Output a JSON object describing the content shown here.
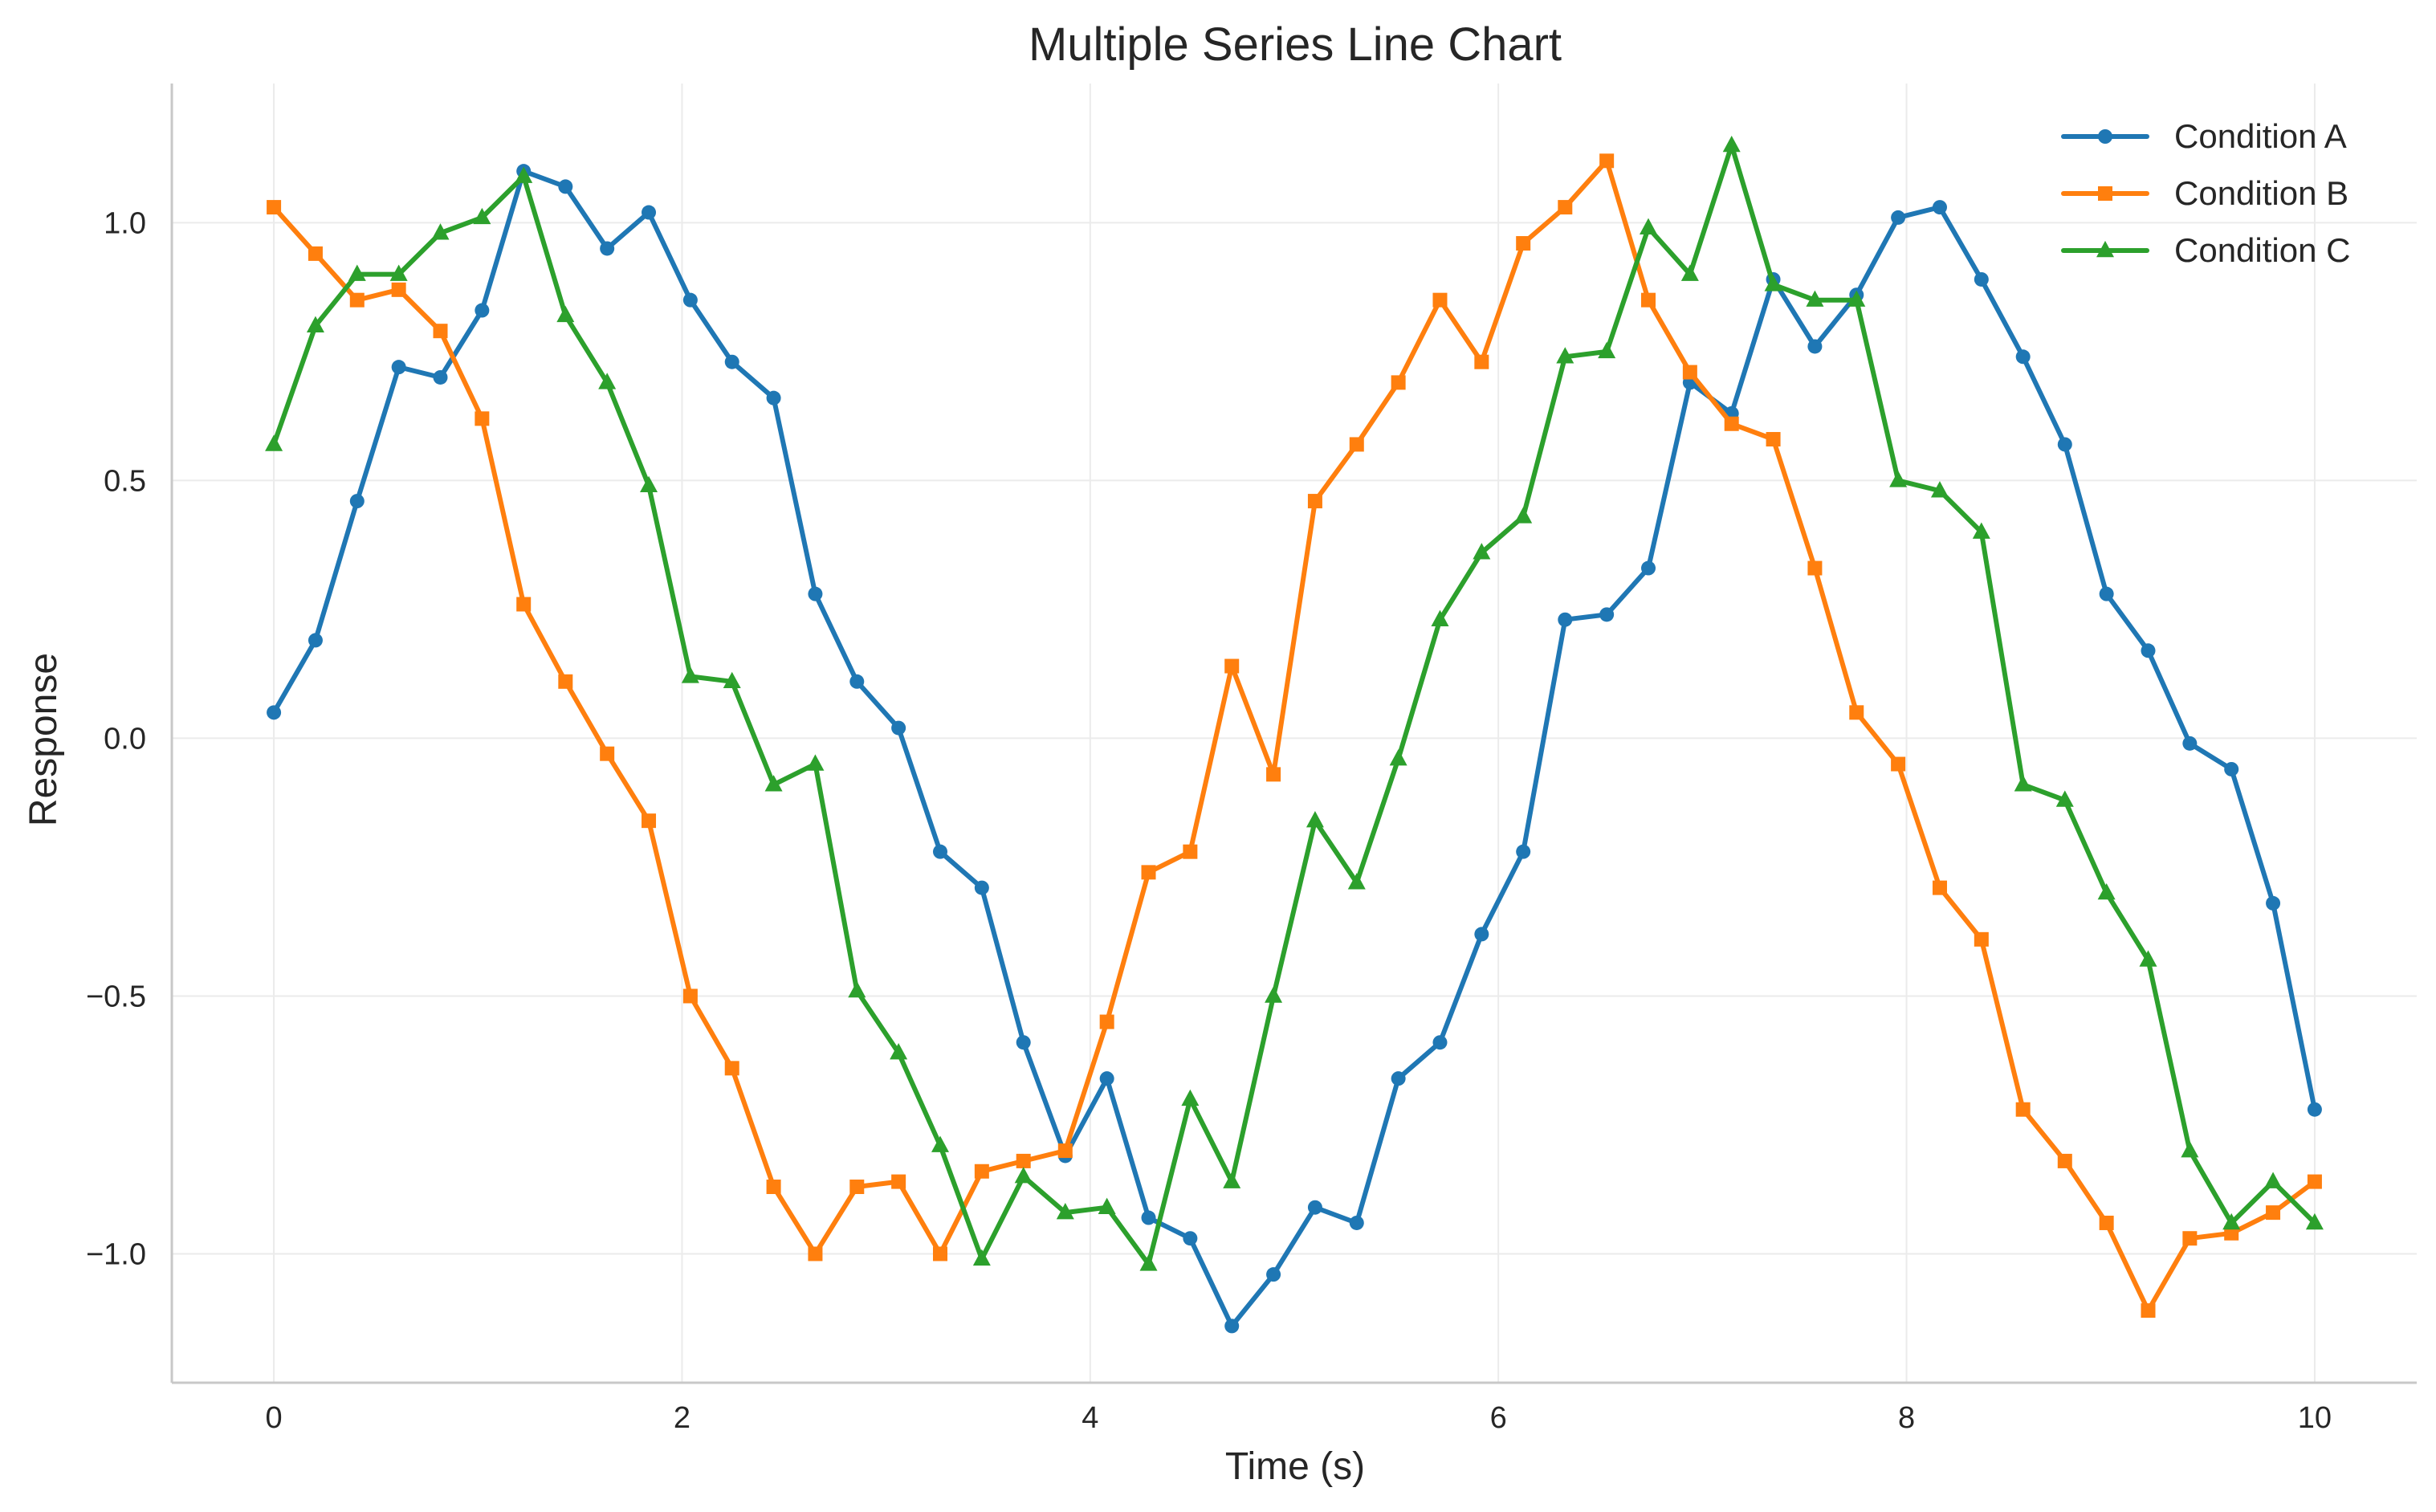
{
  "chart_data": {
    "type": "line",
    "title": "Multiple Series Line Chart",
    "xlabel": "Time (s)",
    "ylabel": "Response",
    "xlim": [
      -0.5,
      10.5
    ],
    "ylim": [
      -1.25,
      1.27
    ],
    "xticks": [
      0,
      2,
      4,
      6,
      8,
      10
    ],
    "xtick_labels": [
      "0",
      "2",
      "4",
      "6",
      "8",
      "10"
    ],
    "yticks": [
      -1.0,
      -0.5,
      0.0,
      0.5,
      1.0
    ],
    "ytick_labels": [
      "−1.0",
      "−0.5",
      "0.0",
      "0.5",
      "1.0"
    ],
    "grid": true,
    "legend_position": "top-right",
    "x": [
      0,
      0.204,
      0.408,
      0.612,
      0.816,
      1.02,
      1.224,
      1.429,
      1.633,
      1.837,
      2.041,
      2.245,
      2.449,
      2.653,
      2.857,
      3.061,
      3.265,
      3.469,
      3.673,
      3.878,
      4.082,
      4.286,
      4.49,
      4.694,
      4.898,
      5.102,
      5.306,
      5.51,
      5.714,
      5.918,
      6.122,
      6.327,
      6.531,
      6.735,
      6.939,
      7.143,
      7.347,
      7.551,
      7.755,
      7.959,
      8.163,
      8.367,
      8.571,
      8.776,
      8.98,
      9.184,
      9.388,
      9.592,
      9.796,
      10.0
    ],
    "series": [
      {
        "name": "Condition A",
        "color": "#1f77b4",
        "marker": "circle",
        "values": [
          0.05,
          0.19,
          0.46,
          0.72,
          0.7,
          0.83,
          1.1,
          1.07,
          0.95,
          1.02,
          0.85,
          0.73,
          0.66,
          0.28,
          0.11,
          0.02,
          -0.22,
          -0.29,
          -0.59,
          -0.81,
          -0.66,
          -0.93,
          -0.97,
          -1.14,
          -1.04,
          -0.91,
          -0.94,
          -0.66,
          -0.59,
          -0.38,
          -0.22,
          0.23,
          0.24,
          0.33,
          0.69,
          0.63,
          0.89,
          0.76,
          0.86,
          1.01,
          1.03,
          0.89,
          0.74,
          0.57,
          0.28,
          0.17,
          -0.01,
          -0.06,
          -0.32,
          -0.72
        ]
      },
      {
        "name": "Condition B",
        "color": "#ff7f0e",
        "marker": "square",
        "values": [
          1.03,
          0.94,
          0.85,
          0.87,
          0.79,
          0.62,
          0.26,
          0.11,
          -0.03,
          -0.16,
          -0.5,
          -0.64,
          -0.87,
          -1.0,
          -0.87,
          -0.86,
          -1.0,
          -0.84,
          -0.82,
          -0.8,
          -0.55,
          -0.26,
          -0.22,
          0.14,
          -0.07,
          0.46,
          0.57,
          0.69,
          0.85,
          0.73,
          0.96,
          1.03,
          1.12,
          0.85,
          0.71,
          0.61,
          0.58,
          0.33,
          0.05,
          -0.05,
          -0.29,
          -0.39,
          -0.72,
          -0.82,
          -0.94,
          -1.11,
          -0.97,
          -0.96,
          -0.92,
          -0.86
        ]
      },
      {
        "name": "Condition C",
        "color": "#2ca02c",
        "marker": "triangle",
        "values": [
          0.57,
          0.8,
          0.9,
          0.9,
          0.98,
          1.01,
          1.09,
          0.82,
          0.69,
          0.49,
          0.12,
          0.11,
          -0.09,
          -0.05,
          -0.49,
          -0.61,
          -0.79,
          -1.01,
          -0.85,
          -0.92,
          -0.91,
          -1.02,
          -0.7,
          -0.86,
          -0.5,
          -0.16,
          -0.28,
          -0.04,
          0.23,
          0.36,
          0.43,
          0.74,
          0.75,
          0.99,
          0.9,
          1.15,
          0.88,
          0.85,
          0.85,
          0.5,
          0.48,
          0.4,
          -0.09,
          -0.12,
          -0.3,
          -0.43,
          -0.8,
          -0.94,
          -0.86,
          -0.94
        ]
      }
    ]
  }
}
